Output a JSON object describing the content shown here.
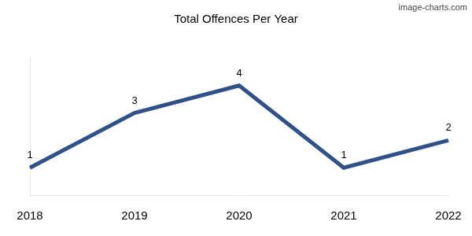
{
  "chart_data": {
    "type": "line",
    "title": "Total Offences Per Year",
    "annotations": [
      "image-charts.com"
    ],
    "categories": [
      "2018",
      "2019",
      "2020",
      "2021",
      "2022"
    ],
    "values": [
      1,
      3,
      4,
      1,
      2
    ],
    "color": "#2f5188",
    "ylim": [
      0,
      5
    ],
    "grid": false,
    "tick_labels": "x",
    "data_labels": true,
    "marker": "none",
    "line_style": "solid"
  }
}
